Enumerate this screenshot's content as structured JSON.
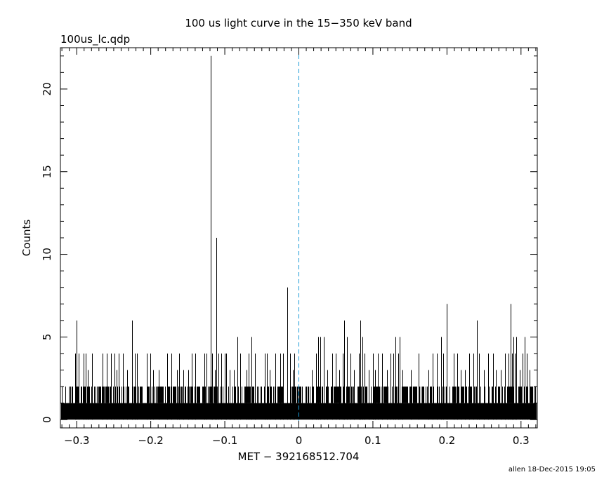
{
  "chart_data": {
    "type": "bar",
    "title": "100 us light curve in the 15−350 keV band",
    "subtitle": "100us_lc.qdp",
    "xlabel": "MET − 392168512.704",
    "ylabel": "Counts",
    "footer": "allen 18-Dec-2015 19:05",
    "xlim": [
      -0.322,
      0.322
    ],
    "ylim": [
      -0.5,
      22.5
    ],
    "x_ticks": [
      -0.3,
      -0.2,
      -0.1,
      0,
      0.1,
      0.2,
      0.3
    ],
    "x_tick_labels": [
      "−0.3",
      "−0.2",
      "−0.1",
      "0",
      "0.1",
      "0.2",
      "0.3"
    ],
    "y_ticks": [
      0,
      5,
      10,
      15,
      20
    ],
    "y_tick_labels": [
      "0",
      "5",
      "10",
      "15",
      "20"
    ],
    "bin_width": 0.0001,
    "trigger_marker": {
      "x": 0,
      "style": "dashed",
      "color": "#1a9ad6"
    },
    "baseline_level": 2,
    "series": [
      {
        "values": [
          [
            -0.3,
            6
          ],
          [
            -0.302,
            4
          ],
          [
            -0.297,
            4
          ],
          [
            -0.291,
            4
          ],
          [
            -0.288,
            4
          ],
          [
            -0.285,
            3
          ],
          [
            -0.279,
            4
          ],
          [
            -0.265,
            4
          ],
          [
            -0.259,
            4
          ],
          [
            -0.254,
            4
          ],
          [
            -0.249,
            4
          ],
          [
            -0.246,
            3
          ],
          [
            -0.243,
            4
          ],
          [
            -0.238,
            4
          ],
          [
            -0.232,
            3
          ],
          [
            -0.225,
            6
          ],
          [
            -0.221,
            4
          ],
          [
            -0.219,
            4
          ],
          [
            -0.205,
            4
          ],
          [
            -0.201,
            4
          ],
          [
            -0.197,
            3
          ],
          [
            -0.189,
            3
          ],
          [
            -0.178,
            4
          ],
          [
            -0.172,
            4
          ],
          [
            -0.165,
            3
          ],
          [
            -0.162,
            4
          ],
          [
            -0.156,
            3
          ],
          [
            -0.149,
            3
          ],
          [
            -0.145,
            4
          ],
          [
            -0.14,
            4
          ],
          [
            -0.128,
            4
          ],
          [
            -0.125,
            4
          ],
          [
            -0.119,
            22
          ],
          [
            -0.117,
            4
          ],
          [
            -0.113,
            3
          ],
          [
            -0.111,
            11
          ],
          [
            -0.109,
            4
          ],
          [
            -0.105,
            4
          ],
          [
            -0.1,
            4
          ],
          [
            -0.098,
            4
          ],
          [
            -0.093,
            3
          ],
          [
            -0.088,
            3
          ],
          [
            -0.083,
            5
          ],
          [
            -0.079,
            4
          ],
          [
            -0.071,
            3
          ],
          [
            -0.068,
            4
          ],
          [
            -0.064,
            5
          ],
          [
            -0.059,
            4
          ],
          [
            -0.046,
            4
          ],
          [
            -0.043,
            4
          ],
          [
            -0.039,
            3
          ],
          [
            -0.032,
            4
          ],
          [
            -0.025,
            4
          ],
          [
            -0.021,
            4
          ],
          [
            -0.016,
            8
          ],
          [
            -0.012,
            4
          ],
          [
            -0.008,
            3
          ],
          [
            -0.006,
            4
          ],
          [
            0.018,
            3
          ],
          [
            0.023,
            4
          ],
          [
            0.026,
            5
          ],
          [
            0.029,
            5
          ],
          [
            0.034,
            5
          ],
          [
            0.038,
            3
          ],
          [
            0.045,
            4
          ],
          [
            0.05,
            4
          ],
          [
            0.055,
            3
          ],
          [
            0.059,
            4
          ],
          [
            0.061,
            6
          ],
          [
            0.065,
            5
          ],
          [
            0.07,
            4
          ],
          [
            0.074,
            3
          ],
          [
            0.081,
            4
          ],
          [
            0.083,
            6
          ],
          [
            0.086,
            5
          ],
          [
            0.089,
            4
          ],
          [
            0.094,
            3
          ],
          [
            0.1,
            4
          ],
          [
            0.103,
            3
          ],
          [
            0.107,
            4
          ],
          [
            0.112,
            4
          ],
          [
            0.119,
            3
          ],
          [
            0.124,
            4
          ],
          [
            0.128,
            4
          ],
          [
            0.13,
            5
          ],
          [
            0.134,
            4
          ],
          [
            0.136,
            5
          ],
          [
            0.14,
            3
          ],
          [
            0.151,
            3
          ],
          [
            0.162,
            4
          ],
          [
            0.175,
            3
          ],
          [
            0.181,
            4
          ],
          [
            0.186,
            4
          ],
          [
            0.192,
            5
          ],
          [
            0.195,
            4
          ],
          [
            0.2,
            7
          ],
          [
            0.209,
            4
          ],
          [
            0.214,
            4
          ],
          [
            0.219,
            3
          ],
          [
            0.224,
            3
          ],
          [
            0.23,
            4
          ],
          [
            0.236,
            4
          ],
          [
            0.24,
            6
          ],
          [
            0.243,
            4
          ],
          [
            0.25,
            3
          ],
          [
            0.256,
            4
          ],
          [
            0.262,
            4
          ],
          [
            0.266,
            3
          ],
          [
            0.273,
            3
          ],
          [
            0.278,
            4
          ],
          [
            0.283,
            4
          ],
          [
            0.286,
            7
          ],
          [
            0.288,
            4
          ],
          [
            0.29,
            5
          ],
          [
            0.292,
            4
          ],
          [
            0.294,
            5
          ],
          [
            0.298,
            3
          ],
          [
            0.302,
            4
          ],
          [
            0.305,
            5
          ],
          [
            0.308,
            4
          ],
          [
            0.312,
            3
          ]
        ]
      }
    ]
  }
}
